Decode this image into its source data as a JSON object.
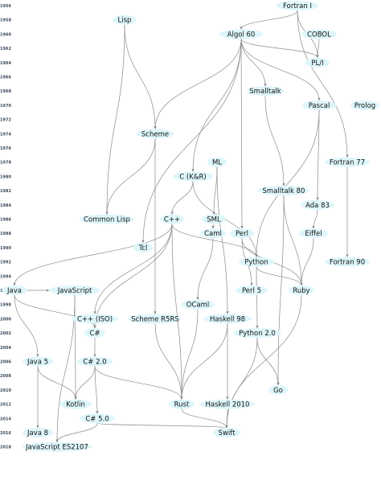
{
  "colors": {
    "node_fill": "#def6fb",
    "edge": "#8a8a8a",
    "year_text": "#3c4a60"
  },
  "years": [
    "1956",
    "1958",
    "1960",
    "1962",
    "1964",
    "1966",
    "1968",
    "1970",
    "1972",
    "1974",
    "1976",
    "1978",
    "1980",
    "1982",
    "1984",
    "1986",
    "1988",
    "1990",
    "1992",
    "1994",
    "1996",
    "1998",
    "2000",
    "2002",
    "2004",
    "2006",
    "2008",
    "2010",
    "2012",
    "2014",
    "2016",
    "2018"
  ],
  "languages": [
    {
      "id": "fortran1",
      "label": "Fortran I"
    },
    {
      "id": "lisp",
      "label": "Lisp"
    },
    {
      "id": "algol60",
      "label": "Algol 60"
    },
    {
      "id": "cobol",
      "label": "COBOL"
    },
    {
      "id": "pli",
      "label": "PL/I"
    },
    {
      "id": "smalltalk",
      "label": "Smalltalk"
    },
    {
      "id": "pascal",
      "label": "Pascal"
    },
    {
      "id": "prolog",
      "label": "Prolog"
    },
    {
      "id": "scheme",
      "label": "Scheme"
    },
    {
      "id": "ml",
      "label": "ML"
    },
    {
      "id": "fortran77",
      "label": "Fortran 77"
    },
    {
      "id": "ckr",
      "label": "C (K&R)"
    },
    {
      "id": "smalltalk80",
      "label": "Smalltalk 80"
    },
    {
      "id": "ada83",
      "label": "Ada 83"
    },
    {
      "id": "commonlisp",
      "label": "Common Lisp"
    },
    {
      "id": "cpp",
      "label": "C++"
    },
    {
      "id": "sml",
      "label": "SML"
    },
    {
      "id": "caml",
      "label": "Caml"
    },
    {
      "id": "perl",
      "label": "Perl"
    },
    {
      "id": "eiffel",
      "label": "Eiffel"
    },
    {
      "id": "tcl",
      "label": "Tcl"
    },
    {
      "id": "python",
      "label": "Python"
    },
    {
      "id": "fortran90",
      "label": "Fortran 90"
    },
    {
      "id": "java",
      "label": "Java"
    },
    {
      "id": "javascript",
      "label": "JavaScript"
    },
    {
      "id": "perl5",
      "label": "Perl 5"
    },
    {
      "id": "ruby",
      "label": "Ruby"
    },
    {
      "id": "ocaml",
      "label": "OCaml"
    },
    {
      "id": "cppiso",
      "label": "C++ (ISO)"
    },
    {
      "id": "schemer5rs",
      "label": "Scheme R5RS"
    },
    {
      "id": "haskell98",
      "label": "Haskell 98"
    },
    {
      "id": "csharp",
      "label": "C#"
    },
    {
      "id": "python2",
      "label": "Python 2.0"
    },
    {
      "id": "java5",
      "label": "Java 5"
    },
    {
      "id": "csharp2",
      "label": "C# 2.0"
    },
    {
      "id": "go",
      "label": "Go"
    },
    {
      "id": "kotlin",
      "label": "Kotlin"
    },
    {
      "id": "rust",
      "label": "Rust"
    },
    {
      "id": "haskell2010",
      "label": "Haskell 2010"
    },
    {
      "id": "csharp5",
      "label": "C# 5.0"
    },
    {
      "id": "java8",
      "label": "Java 8"
    },
    {
      "id": "swift",
      "label": "Swift"
    },
    {
      "id": "js2107",
      "label": "JavaScript ES2107"
    }
  ],
  "relations": [
    [
      "fortran1",
      "algol60"
    ],
    [
      "fortran1",
      "pli"
    ],
    [
      "fortran1",
      "fortran77"
    ],
    [
      "lisp",
      "scheme"
    ],
    [
      "lisp",
      "commonlisp"
    ],
    [
      "algol60",
      "pli"
    ],
    [
      "algol60",
      "smalltalk"
    ],
    [
      "algol60",
      "pascal"
    ],
    [
      "algol60",
      "scheme"
    ],
    [
      "algol60",
      "ckr"
    ],
    [
      "algol60",
      "perl"
    ],
    [
      "algol60",
      "tcl"
    ],
    [
      "cobol",
      "pli"
    ],
    [
      "pascal",
      "ada83"
    ],
    [
      "pascal",
      "python"
    ],
    [
      "smalltalk",
      "smalltalk80"
    ],
    [
      "scheme",
      "commonlisp"
    ],
    [
      "scheme",
      "schemer5rs"
    ],
    [
      "ml",
      "sml"
    ],
    [
      "ml",
      "haskell98"
    ],
    [
      "fortran77",
      "fortran90"
    ],
    [
      "ckr",
      "cpp"
    ],
    [
      "ckr",
      "python"
    ],
    [
      "smalltalk80",
      "ruby"
    ],
    [
      "smalltalk80",
      "go"
    ],
    [
      "ada83",
      "eiffel"
    ],
    [
      "cpp",
      "java"
    ],
    [
      "cpp",
      "cppiso"
    ],
    [
      "cpp",
      "csharp"
    ],
    [
      "cpp",
      "rust"
    ],
    [
      "cpp",
      "python"
    ],
    [
      "sml",
      "caml"
    ],
    [
      "caml",
      "ocaml"
    ],
    [
      "perl",
      "perl5"
    ],
    [
      "perl",
      "ruby"
    ],
    [
      "eiffel",
      "ruby"
    ],
    [
      "python",
      "ruby"
    ],
    [
      "python",
      "python2"
    ],
    [
      "java",
      "javascript"
    ],
    [
      "java",
      "csharp"
    ],
    [
      "java",
      "java5"
    ],
    [
      "javascript",
      "kotlin"
    ],
    [
      "javascript",
      "js2107"
    ],
    [
      "ocaml",
      "rust"
    ],
    [
      "cppiso",
      "csharp"
    ],
    [
      "schemer5rs",
      "rust"
    ],
    [
      "haskell98",
      "rust"
    ],
    [
      "haskell98",
      "haskell2010"
    ],
    [
      "csharp",
      "csharp2"
    ],
    [
      "python2",
      "go"
    ],
    [
      "python2",
      "swift"
    ],
    [
      "java5",
      "java8"
    ],
    [
      "java5",
      "kotlin"
    ],
    [
      "csharp2",
      "kotlin"
    ],
    [
      "csharp2",
      "rust"
    ],
    [
      "csharp2",
      "csharp5"
    ],
    [
      "haskell2010",
      "swift"
    ],
    [
      "csharp5",
      "swift"
    ],
    [
      "csharp5",
      "js2107"
    ],
    [
      "rust",
      "swift"
    ],
    [
      "ruby",
      "swift"
    ]
  ]
}
